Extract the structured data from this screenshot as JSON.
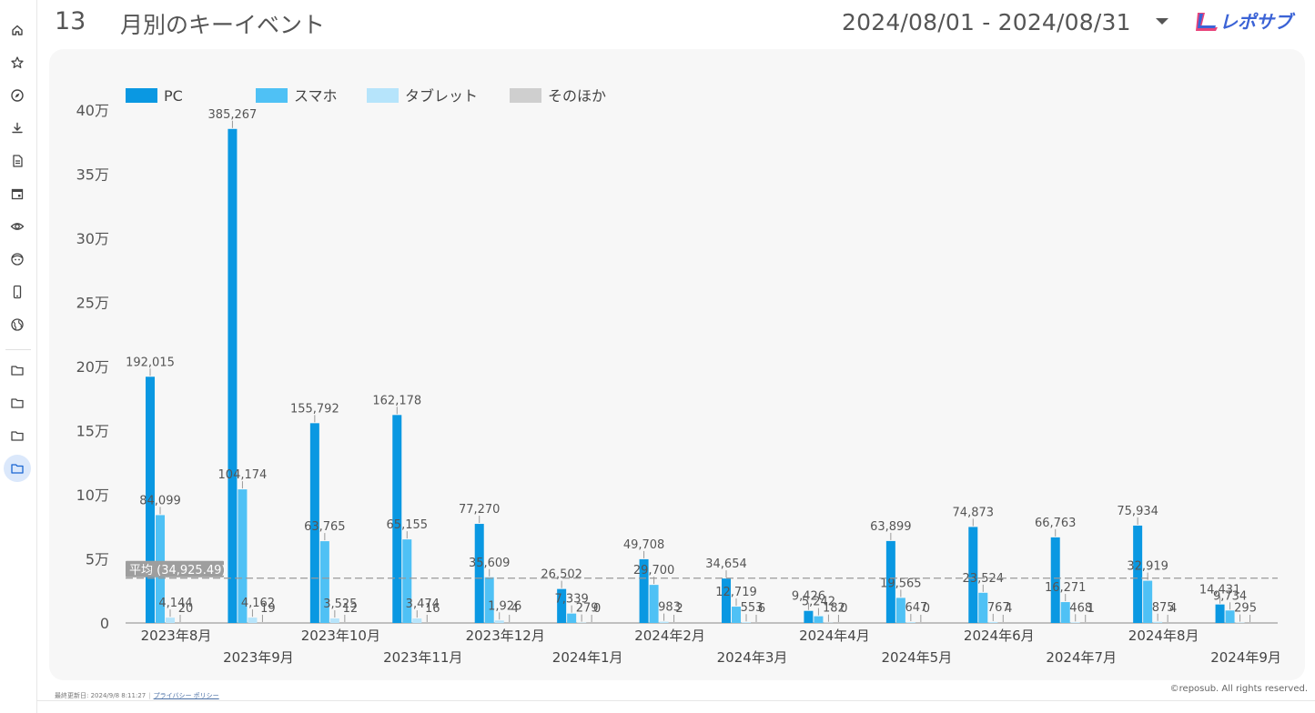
{
  "header": {
    "page_number": "13",
    "title": "月別のキーイベント",
    "date_range": "2024/08/01 - 2024/08/31",
    "logo_text": "レポサブ"
  },
  "sidebar": {
    "icons": [
      "home-icon",
      "star-icon",
      "compass-icon",
      "download-icon",
      "document-icon",
      "calendar-icon",
      "eye-icon",
      "face-icon",
      "smartphone-icon",
      "globe-icon",
      "folder-icon",
      "folder-icon",
      "folder-icon",
      "folder-icon"
    ],
    "active_index": 13
  },
  "footer": {
    "updated": "最終更新日: 2024/9/8 8:11:27",
    "policy": "プライバシー ポリシー",
    "copyright": "©reposub. All rights reserved."
  },
  "chart_data": {
    "type": "bar",
    "categories": [
      "2023年8月",
      "2023年9月",
      "2023年10月",
      "2023年11月",
      "2023年12月",
      "2024年1月",
      "2024年2月",
      "2024年3月",
      "2024年4月",
      "2024年5月",
      "2024年6月",
      "2024年7月",
      "2024年8月",
      "2024年9月"
    ],
    "series": [
      {
        "name": "PC",
        "color": "#0a98e2",
        "values": [
          192015,
          385267,
          155792,
          162178,
          77270,
          26502,
          49708,
          34654,
          9426,
          63899,
          74873,
          66763,
          75934,
          14431
        ],
        "labels": [
          "192,015",
          "385,267",
          "155,792",
          "162,178",
          "77,270",
          "26,502",
          "49,708",
          "34,654",
          "9,426",
          "63,899",
          "74,873",
          "66,763",
          "75,934",
          "14,431"
        ]
      },
      {
        "name": "スマホ",
        "color": "#4fc1f5",
        "values": [
          84099,
          104174,
          63765,
          65155,
          35609,
          7339,
          29700,
          12719,
          5242,
          19565,
          23524,
          16271,
          32919,
          9734
        ],
        "labels": [
          "84,099",
          "104,174",
          "63,765",
          "65,155",
          "35,609",
          "7,339",
          "29,700",
          "12,719",
          "5,242",
          "19,565",
          "23,524",
          "16,271",
          "32,919",
          "9,734"
        ]
      },
      {
        "name": "タブレット",
        "color": "#b6e4fb",
        "values": [
          4144,
          4162,
          3525,
          3474,
          1926,
          279,
          983,
          553,
          182,
          647,
          767,
          468,
          875,
          295
        ],
        "labels": [
          "4,144",
          "4,162",
          "3,525",
          "3,474",
          "1,926",
          "279",
          "983",
          "553",
          "182",
          "647",
          "767",
          "468",
          "875",
          "295"
        ]
      },
      {
        "name": "そのほか",
        "color": "#cfcfcf",
        "values": [
          20,
          19,
          12,
          16,
          4,
          0,
          2,
          6,
          0,
          0,
          4,
          1,
          4,
          0
        ],
        "labels": [
          "20",
          "19",
          "12",
          "16",
          "4",
          "0",
          "2",
          "6",
          "0",
          "0",
          "4",
          "1",
          "4",
          ""
        ]
      }
    ],
    "ylim": [
      0,
      400000
    ],
    "yticks": [
      0,
      50000,
      100000,
      150000,
      200000,
      250000,
      300000,
      350000,
      400000
    ],
    "ytick_labels": [
      "0",
      "5万",
      "10万",
      "15万",
      "20万",
      "25万",
      "30万",
      "35万",
      "40万"
    ],
    "average": {
      "value": 34925.49,
      "label": "平均 (34,925.49)"
    },
    "legend_position": "top-left",
    "grid": false
  }
}
